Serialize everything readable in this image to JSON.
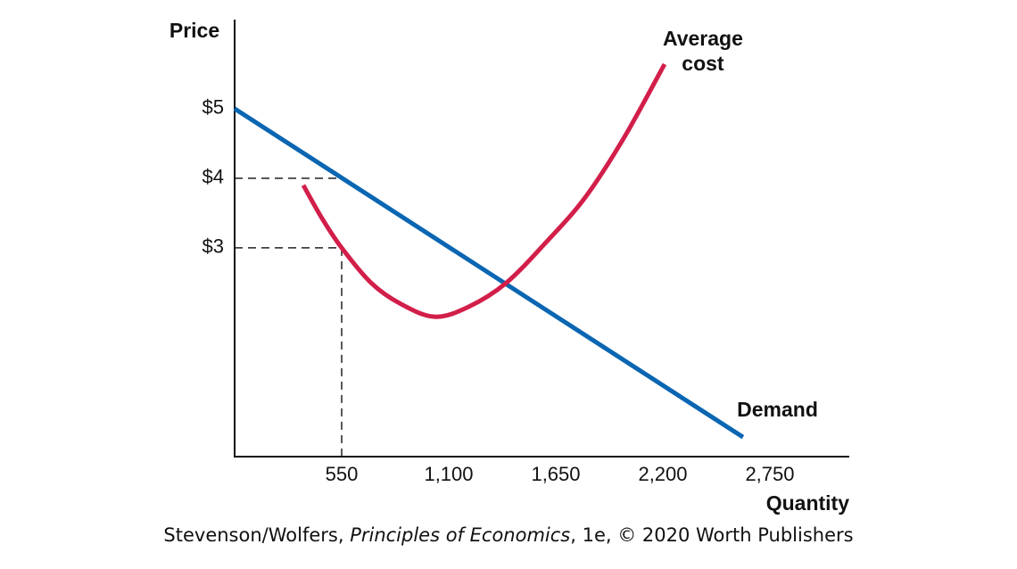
{
  "chart_data": {
    "type": "line",
    "y_label": "Price",
    "x_label": "Quantity",
    "xlim": [
      0,
      3158
    ],
    "ylim": [
      0,
      6.28
    ],
    "xticks": [
      550,
      {
        "value": 1100,
        "label": "1,100"
      },
      {
        "value": 1650,
        "label": "1,650"
      },
      {
        "value": 2200,
        "label": "2,200"
      },
      {
        "value": 2750,
        "label": "2,750"
      }
    ],
    "yticks": [
      {
        "value": 3,
        "label": "$3"
      },
      {
        "value": 4,
        "label": "$4"
      },
      {
        "value": 5,
        "label": "$5"
      }
    ],
    "series": [
      {
        "name": "Demand",
        "color": "#0a66b2",
        "x": [
          0,
          2612
        ],
        "values": [
          5,
          0.28
        ]
      },
      {
        "name": "Average cost",
        "color": "#d21f4a",
        "x": [
          353,
          450,
          550,
          700,
          850,
          1027,
          1200,
          1393,
          1600,
          1800,
          2000,
          2209
        ],
        "values": [
          3.9,
          3.42,
          3.0,
          2.5,
          2.2,
          2.01,
          2.15,
          2.49,
          3.08,
          3.72,
          4.58,
          5.64
        ]
      }
    ],
    "guides": [
      {
        "x": 550,
        "y": 4
      },
      {
        "x": 550,
        "y": 3
      }
    ]
  },
  "source": {
    "author": "Stevenson/Wolfers, ",
    "book": "Principles of Economics",
    "rest": ", 1e, © 2020 Worth Publishers"
  }
}
